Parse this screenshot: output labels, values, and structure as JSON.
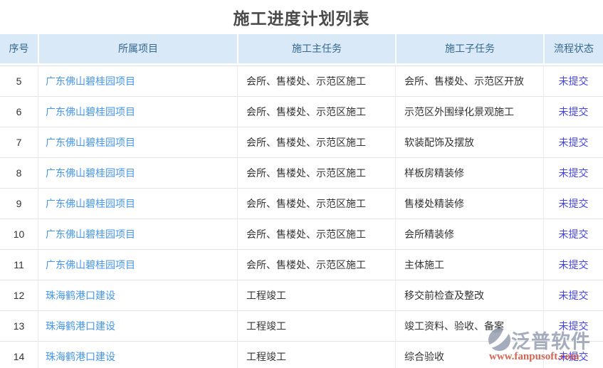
{
  "page": {
    "title": "施工进度计划列表"
  },
  "table": {
    "columns": [
      {
        "key": "index",
        "label": "序号"
      },
      {
        "key": "project",
        "label": "所属项目"
      },
      {
        "key": "main_task",
        "label": "施工主任务"
      },
      {
        "key": "sub_task",
        "label": "施工子任务"
      },
      {
        "key": "status",
        "label": "流程状态"
      }
    ],
    "rows": [
      {
        "index": "5",
        "project": "广东佛山碧桂园项目",
        "main_task": "会所、售楼处、示范区施工",
        "sub_task": "会所、售楼处、示范区开放",
        "status": "未提交"
      },
      {
        "index": "6",
        "project": "广东佛山碧桂园项目",
        "main_task": "会所、售楼处、示范区施工",
        "sub_task": "示范区外围绿化景观施工",
        "status": "未提交"
      },
      {
        "index": "7",
        "project": "广东佛山碧桂园项目",
        "main_task": "会所、售楼处、示范区施工",
        "sub_task": "软装配饰及摆放",
        "status": "未提交"
      },
      {
        "index": "8",
        "project": "广东佛山碧桂园项目",
        "main_task": "会所、售楼处、示范区施工",
        "sub_task": "样板房精装修",
        "status": "未提交"
      },
      {
        "index": "9",
        "project": "广东佛山碧桂园项目",
        "main_task": "会所、售楼处、示范区施工",
        "sub_task": "售楼处精装修",
        "status": "未提交"
      },
      {
        "index": "10",
        "project": "广东佛山碧桂园项目",
        "main_task": "会所、售楼处、示范区施工",
        "sub_task": "会所精装修",
        "status": "未提交"
      },
      {
        "index": "11",
        "project": "广东佛山碧桂园项目",
        "main_task": "会所、售楼处、示范区施工",
        "sub_task": "主体施工",
        "status": "未提交"
      },
      {
        "index": "12",
        "project": "珠海鹤港口建设",
        "main_task": "工程竣工",
        "sub_task": "移交前检查及整改",
        "status": "未提交"
      },
      {
        "index": "13",
        "project": "珠海鹤港口建设",
        "main_task": "工程竣工",
        "sub_task": "竣工资料、验收、备案",
        "status": "未提交"
      },
      {
        "index": "14",
        "project": "珠海鹤港口建设",
        "main_task": "工程竣工",
        "sub_task": "综合验收",
        "status": "未提交"
      }
    ]
  },
  "watermark": {
    "brand": "泛普软件",
    "url": "www.fanpusoft.com"
  },
  "colors": {
    "header_bg": "#d9e9f7",
    "header_text": "#35688f",
    "project_link": "#4496ee",
    "status_link": "#4343ee",
    "watermark_gray": "#99a2b5",
    "watermark_url": "#cc4f3c"
  }
}
